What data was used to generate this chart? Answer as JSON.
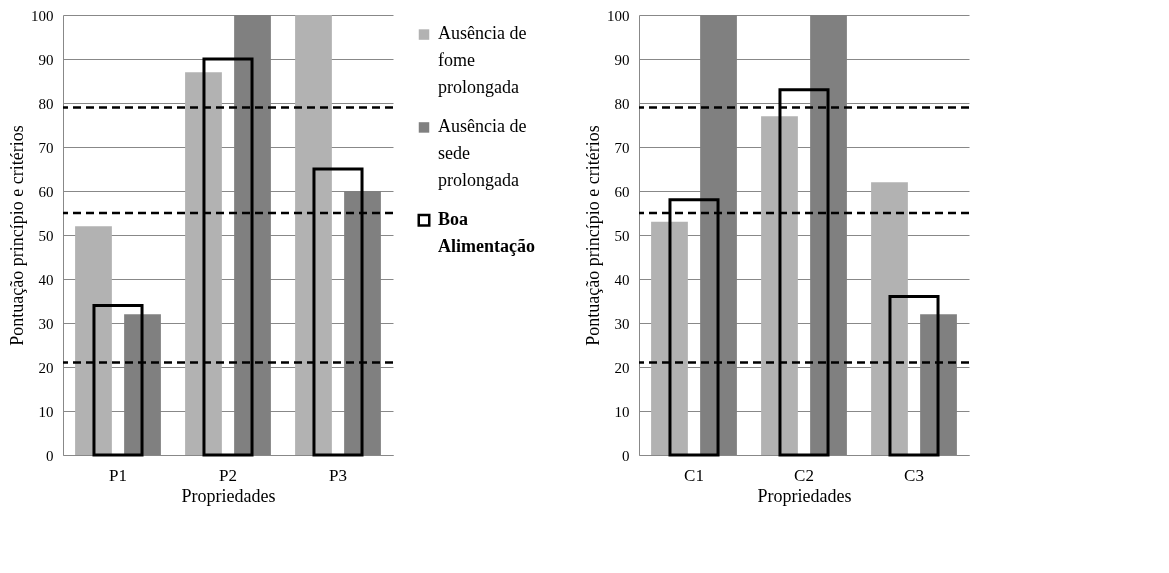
{
  "chart_data": [
    {
      "type": "bar",
      "xlabel": "Propriedades",
      "ylabel": "Pontuação princípio  e critérios",
      "categories": [
        "P1",
        "P2",
        "P3"
      ],
      "ylim": [
        0,
        100
      ],
      "yticks": [
        0,
        10,
        20,
        30,
        40,
        50,
        60,
        70,
        80,
        90,
        100
      ],
      "grid": "y",
      "legend": "right",
      "series": [
        {
          "name": "Ausência de fome prolongada",
          "color": "#b2b2b2",
          "values": [
            52,
            87,
            100
          ]
        },
        {
          "name": "Ausência de sede prolongada",
          "color": "#808080",
          "values": [
            32,
            100,
            60
          ]
        },
        {
          "name": "Boa Alimentação",
          "color": "#000000",
          "line_style": "solid",
          "values": [
            34,
            90,
            65
          ]
        }
      ],
      "ref_lines": [
        {
          "axis": "y",
          "value": 79,
          "color": "#000000",
          "line_style": "dashed"
        },
        {
          "axis": "y",
          "value": 55,
          "color": "#000000",
          "line_style": "dashed"
        },
        {
          "axis": "y",
          "value": 21,
          "color": "#000000",
          "line_style": "dashed"
        }
      ]
    },
    {
      "type": "bar",
      "xlabel": "Propriedades",
      "ylabel": "Pontuação princípio  e critérios",
      "categories": [
        "C1",
        "C2",
        "C3"
      ],
      "ylim": [
        0,
        100
      ],
      "yticks": [
        0,
        10,
        20,
        30,
        40,
        50,
        60,
        70,
        80,
        90,
        100
      ],
      "grid": "y",
      "series": [
        {
          "color": "#b2b2b2",
          "values": [
            53,
            77,
            62
          ]
        },
        {
          "color": "#808080",
          "values": [
            100,
            100,
            32
          ]
        },
        {
          "color": "#000000",
          "line_style": "solid",
          "values": [
            58,
            83,
            36
          ]
        }
      ],
      "ref_lines": [
        {
          "axis": "y",
          "value": 79,
          "color": "#000000",
          "line_style": "dashed"
        },
        {
          "axis": "y",
          "value": 55,
          "color": "#000000",
          "line_style": "dashed"
        },
        {
          "axis": "y",
          "value": 21,
          "color": "#000000",
          "line_style": "dashed"
        }
      ]
    }
  ]
}
